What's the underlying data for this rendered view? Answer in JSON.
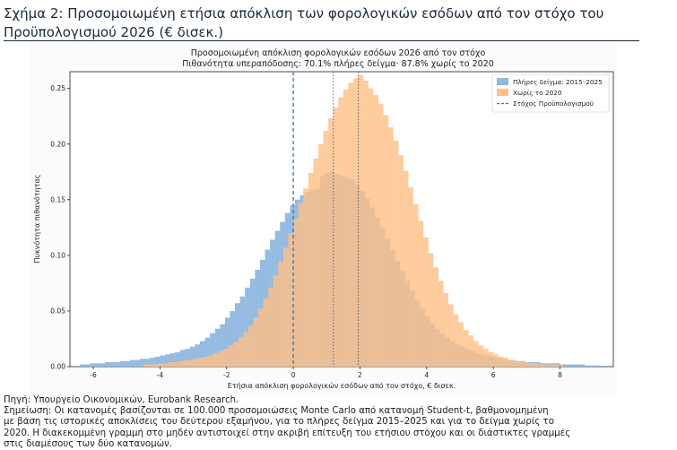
{
  "figure": {
    "title": "Σχήμα 2: Προσομοιωμένη ετήσια απόκλιση των φορολογικών εσόδων από τον στόχο του Προϋπολογισμού 2026 (€ δισεκ.)",
    "source": "Πηγή: Υπουργείο Οικονομικών, Eurobank Research.",
    "note_lines": [
      "Σημείωση: Οι κατανομές βασίζονται σε 100.000 προσομοιώσεις Monte Carlo από κατανομή Student-t, βαθμονομημένη",
      "με βάση τις ιστορικές αποκλίσεις του δεύτερου εξαμήνου, για το πλήρες δείγμα 2015–2025 και για το δείγμα χωρίς το",
      "2020. Η διακεκομμένη γραμμή στο μηδέν αντιστοιχεί στην ακριβή επίτευξη του ετήσιου στόχου και οι διάστικτες γραμμές",
      "στις διαμέσους των δύο κατανομών."
    ]
  },
  "chart_data": {
    "type": "histogram",
    "title": "Προσομοιωμένη απόκλιση φορολογικών εσόδων 2026 από τον στόχο",
    "subtitle": "Πιθανότητα υπεραπόδοσης: 70.1% πλήρες δείγμα· 87.8% χωρίς το 2020",
    "xlabel": "Ετήσια απόκλιση φορολογικών εσόδων από τον στόχο, € δισεκ.",
    "ylabel": "Πυκνότητα πιθανότητας",
    "xlim": [
      -6.7,
      9.6
    ],
    "ylim": [
      0,
      0.265
    ],
    "xticks": [
      -6,
      -4,
      -2,
      0,
      2,
      4,
      6,
      8
    ],
    "yticks": [
      0.0,
      0.05,
      0.1,
      0.15,
      0.2,
      0.25
    ],
    "bin_width": 0.15,
    "grid": false,
    "legend_position": "top-right",
    "series": [
      {
        "name": "Πλήρες δείγμα: 2015–2025",
        "color": "#8fb8de",
        "bins": [
          [
            -6.4,
            0.002
          ],
          [
            -6.25,
            0.002
          ],
          [
            -6.1,
            0.003
          ],
          [
            -5.95,
            0.003
          ],
          [
            -5.8,
            0.003
          ],
          [
            -5.65,
            0.004
          ],
          [
            -5.5,
            0.004
          ],
          [
            -5.35,
            0.004
          ],
          [
            -5.2,
            0.005
          ],
          [
            -5.05,
            0.005
          ],
          [
            -4.9,
            0.006
          ],
          [
            -4.75,
            0.006
          ],
          [
            -4.6,
            0.007
          ],
          [
            -4.45,
            0.007
          ],
          [
            -4.3,
            0.008
          ],
          [
            -4.15,
            0.009
          ],
          [
            -4.0,
            0.01
          ],
          [
            -3.85,
            0.011
          ],
          [
            -3.7,
            0.012
          ],
          [
            -3.55,
            0.013
          ],
          [
            -3.4,
            0.015
          ],
          [
            -3.25,
            0.016
          ],
          [
            -3.1,
            0.018
          ],
          [
            -2.95,
            0.02
          ],
          [
            -2.8,
            0.023
          ],
          [
            -2.65,
            0.026
          ],
          [
            -2.5,
            0.03
          ],
          [
            -2.35,
            0.034
          ],
          [
            -2.2,
            0.038
          ],
          [
            -2.05,
            0.044
          ],
          [
            -1.9,
            0.05
          ],
          [
            -1.75,
            0.057
          ],
          [
            -1.6,
            0.063
          ],
          [
            -1.45,
            0.071
          ],
          [
            -1.3,
            0.079
          ],
          [
            -1.15,
            0.087
          ],
          [
            -1.0,
            0.096
          ],
          [
            -0.85,
            0.105
          ],
          [
            -0.7,
            0.114
          ],
          [
            -0.55,
            0.122
          ],
          [
            -0.4,
            0.13
          ],
          [
            -0.25,
            0.138
          ],
          [
            -0.1,
            0.145
          ],
          [
            0.05,
            0.15
          ],
          [
            0.2,
            0.154
          ],
          [
            0.35,
            0.157
          ],
          [
            0.5,
            0.159
          ],
          [
            0.65,
            0.16
          ],
          [
            0.8,
            0.171
          ],
          [
            0.95,
            0.174
          ],
          [
            1.1,
            0.175
          ],
          [
            1.25,
            0.173
          ],
          [
            1.4,
            0.171
          ],
          [
            1.55,
            0.17
          ],
          [
            1.7,
            0.168
          ],
          [
            1.85,
            0.163
          ],
          [
            2.0,
            0.158
          ],
          [
            2.15,
            0.151
          ],
          [
            2.3,
            0.143
          ],
          [
            2.45,
            0.134
          ],
          [
            2.6,
            0.125
          ],
          [
            2.75,
            0.115
          ],
          [
            2.9,
            0.105
          ],
          [
            3.05,
            0.095
          ],
          [
            3.2,
            0.086
          ],
          [
            3.35,
            0.077
          ],
          [
            3.5,
            0.068
          ],
          [
            3.65,
            0.06
          ],
          [
            3.8,
            0.052
          ],
          [
            3.95,
            0.045
          ],
          [
            4.1,
            0.039
          ],
          [
            4.25,
            0.034
          ],
          [
            4.4,
            0.03
          ],
          [
            4.55,
            0.026
          ],
          [
            4.7,
            0.023
          ],
          [
            4.85,
            0.02
          ],
          [
            5.0,
            0.018
          ],
          [
            5.15,
            0.016
          ],
          [
            5.3,
            0.014
          ],
          [
            5.45,
            0.012
          ],
          [
            5.6,
            0.011
          ],
          [
            5.75,
            0.01
          ],
          [
            5.9,
            0.009
          ],
          [
            6.05,
            0.008
          ],
          [
            6.2,
            0.007
          ],
          [
            6.35,
            0.006
          ],
          [
            6.5,
            0.006
          ],
          [
            6.65,
            0.005
          ],
          [
            6.8,
            0.005
          ],
          [
            6.95,
            0.004
          ],
          [
            7.1,
            0.004
          ],
          [
            7.25,
            0.004
          ],
          [
            7.4,
            0.003
          ],
          [
            7.55,
            0.003
          ],
          [
            7.7,
            0.003
          ],
          [
            7.85,
            0.003
          ],
          [
            8.0,
            0.002
          ],
          [
            8.15,
            0.002
          ],
          [
            8.3,
            0.002
          ],
          [
            8.45,
            0.002
          ],
          [
            8.6,
            0.002
          ],
          [
            8.75,
            0.001
          ],
          [
            8.9,
            0.001
          ],
          [
            9.05,
            0.001
          ]
        ],
        "median": 1.2
      },
      {
        "name": "Χωρίς το 2020",
        "color": "#ffbf86",
        "bins": [
          [
            -4.5,
            0.002
          ],
          [
            -4.35,
            0.002
          ],
          [
            -4.2,
            0.002
          ],
          [
            -4.05,
            0.003
          ],
          [
            -3.9,
            0.003
          ],
          [
            -3.75,
            0.004
          ],
          [
            -3.6,
            0.004
          ],
          [
            -3.45,
            0.005
          ],
          [
            -3.3,
            0.006
          ],
          [
            -3.15,
            0.006
          ],
          [
            -3.0,
            0.007
          ],
          [
            -2.85,
            0.008
          ],
          [
            -2.7,
            0.009
          ],
          [
            -2.55,
            0.01
          ],
          [
            -2.4,
            0.012
          ],
          [
            -2.25,
            0.014
          ],
          [
            -2.1,
            0.016
          ],
          [
            -1.95,
            0.019
          ],
          [
            -1.8,
            0.022
          ],
          [
            -1.65,
            0.026
          ],
          [
            -1.5,
            0.031
          ],
          [
            -1.35,
            0.037
          ],
          [
            -1.2,
            0.044
          ],
          [
            -1.05,
            0.052
          ],
          [
            -0.9,
            0.061
          ],
          [
            -0.75,
            0.071
          ],
          [
            -0.6,
            0.082
          ],
          [
            -0.45,
            0.094
          ],
          [
            -0.3,
            0.107
          ],
          [
            -0.15,
            0.12
          ],
          [
            0.0,
            0.133
          ],
          [
            0.15,
            0.147
          ],
          [
            0.3,
            0.16
          ],
          [
            0.45,
            0.174
          ],
          [
            0.6,
            0.187
          ],
          [
            0.75,
            0.2
          ],
          [
            0.9,
            0.212
          ],
          [
            1.05,
            0.223
          ],
          [
            1.2,
            0.233
          ],
          [
            1.35,
            0.242
          ],
          [
            1.5,
            0.249
          ],
          [
            1.65,
            0.255
          ],
          [
            1.8,
            0.259
          ],
          [
            1.95,
            0.262
          ],
          [
            2.1,
            0.257
          ],
          [
            2.25,
            0.25
          ],
          [
            2.4,
            0.244
          ],
          [
            2.55,
            0.236
          ],
          [
            2.7,
            0.226
          ],
          [
            2.85,
            0.215
          ],
          [
            3.0,
            0.203
          ],
          [
            3.15,
            0.19
          ],
          [
            3.3,
            0.176
          ],
          [
            3.45,
            0.161
          ],
          [
            3.6,
            0.146
          ],
          [
            3.75,
            0.131
          ],
          [
            3.9,
            0.116
          ],
          [
            4.05,
            0.102
          ],
          [
            4.2,
            0.089
          ],
          [
            4.35,
            0.077
          ],
          [
            4.5,
            0.066
          ],
          [
            4.65,
            0.056
          ],
          [
            4.8,
            0.047
          ],
          [
            4.95,
            0.04
          ],
          [
            5.1,
            0.033
          ],
          [
            5.25,
            0.028
          ],
          [
            5.4,
            0.023
          ],
          [
            5.55,
            0.019
          ],
          [
            5.7,
            0.016
          ],
          [
            5.85,
            0.013
          ],
          [
            6.0,
            0.011
          ],
          [
            6.15,
            0.009
          ],
          [
            6.3,
            0.008
          ],
          [
            6.45,
            0.006
          ],
          [
            6.6,
            0.005
          ],
          [
            6.75,
            0.005
          ],
          [
            6.9,
            0.004
          ],
          [
            7.05,
            0.003
          ],
          [
            7.2,
            0.003
          ],
          [
            7.35,
            0.002
          ],
          [
            7.5,
            0.002
          ],
          [
            7.65,
            0.002
          ],
          [
            7.8,
            0.002
          ],
          [
            7.95,
            0.001
          ]
        ],
        "median": 1.95
      }
    ],
    "reference_line": {
      "label": "Στόχος Προϋπολογισμού",
      "x": 0,
      "color": "#2a7ab0"
    }
  }
}
